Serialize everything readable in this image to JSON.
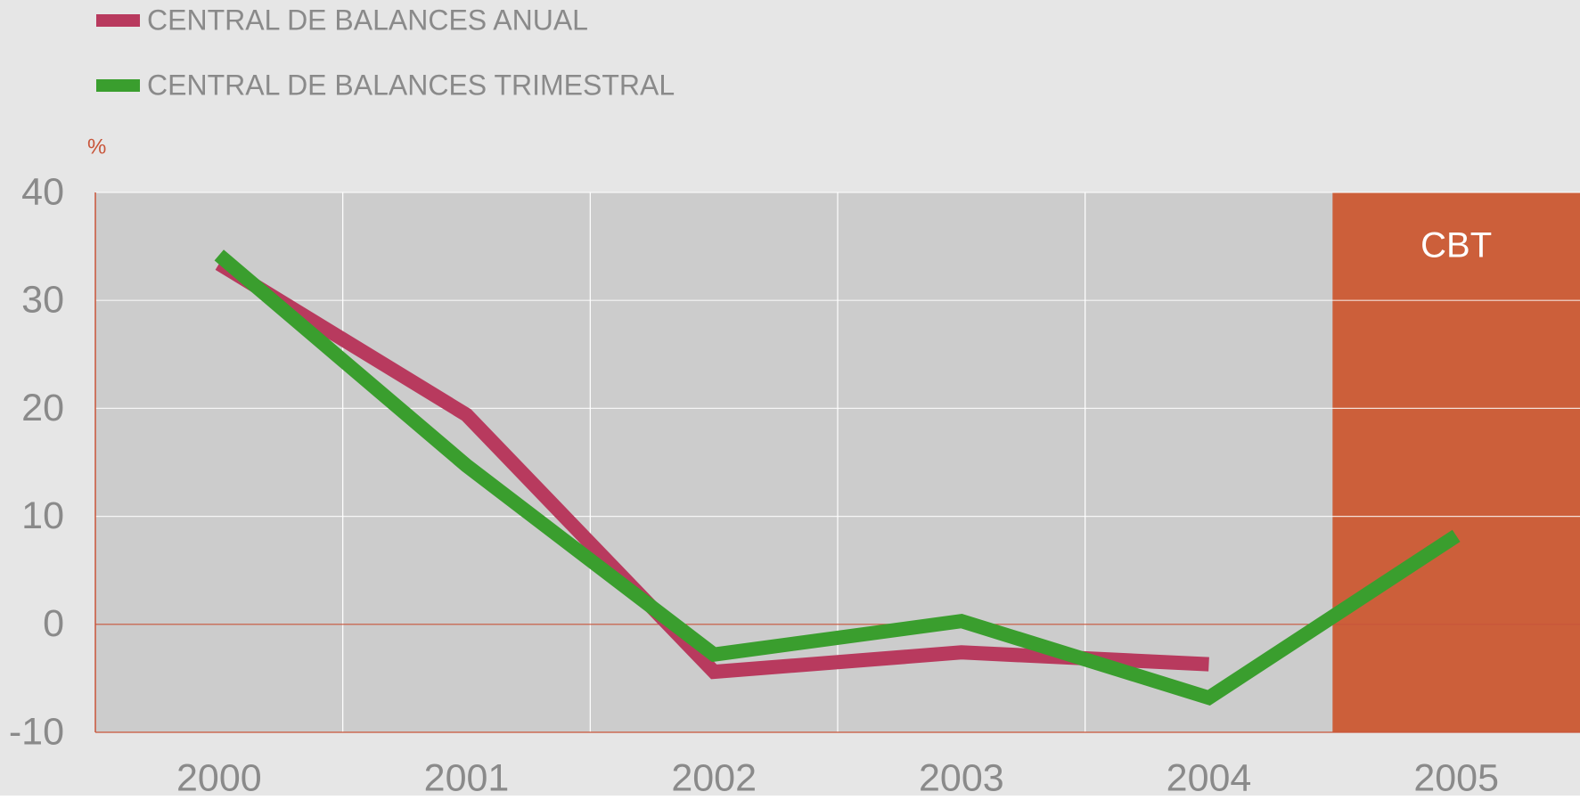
{
  "chart_data": {
    "type": "line",
    "y_label": "%",
    "categories": [
      "2000",
      "2001",
      "2002",
      "2003",
      "2004",
      "2005"
    ],
    "series": [
      {
        "name": "CENTRAL DE BALANCES ANUAL",
        "color": "#b83a5e",
        "values": [
          33.4,
          19.4,
          -4.4,
          -2.6,
          -3.7,
          null
        ]
      },
      {
        "name": "CENTRAL DE BALANCES TRIMESTRAL",
        "color": "#3a9e2e",
        "values": [
          34.2,
          14.7,
          -2.8,
          0.3,
          -6.8,
          8.2
        ]
      }
    ],
    "ylim": [
      -10,
      40
    ],
    "yticks": [
      -10,
      0,
      10,
      20,
      30,
      40
    ],
    "grid": true,
    "highlight": {
      "category": "2005",
      "label": "CBT",
      "color": "#cc5f3a"
    },
    "axis_color": "#c8553a",
    "plot_color": "#cccccc",
    "background": "#e6e6e6"
  }
}
